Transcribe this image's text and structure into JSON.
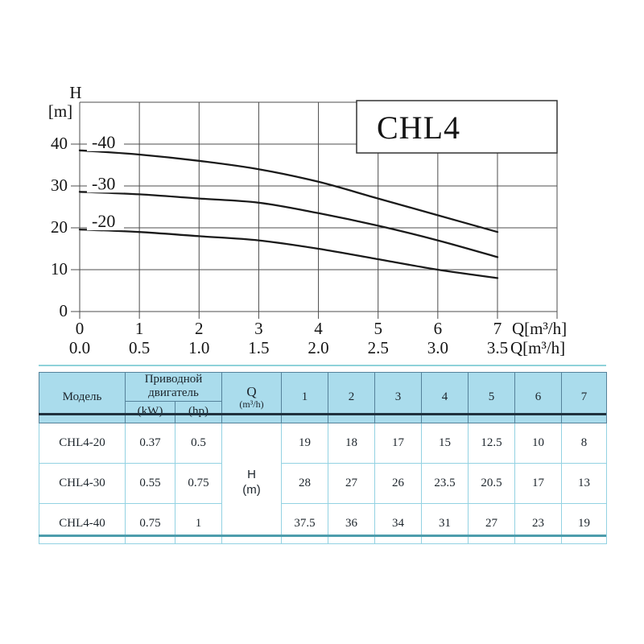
{
  "chart_data": {
    "type": "line",
    "title": "CHL4",
    "ylabel_lines": [
      "H",
      "[m]"
    ],
    "x_unit_primary": "Q[m³/h]",
    "x_unit_secondary": "Q[m³/h]",
    "xlim": [
      0,
      8
    ],
    "ylim": [
      0,
      50
    ],
    "grid": true,
    "x_ticks": [
      "0",
      "1",
      "2",
      "3",
      "4",
      "5",
      "6",
      "7"
    ],
    "x_ticks_secondary": [
      "0.0",
      "0.5",
      "1.0",
      "1.5",
      "2.0",
      "2.5",
      "3.0",
      "3.5"
    ],
    "y_ticks": [
      "0",
      "10",
      "20",
      "30",
      "40"
    ],
    "series": [
      {
        "name": "-40",
        "x": [
          0,
          1,
          2,
          3,
          4,
          5,
          6,
          7
        ],
        "values": [
          38.5,
          37.5,
          36,
          34,
          31,
          27,
          23,
          19
        ]
      },
      {
        "name": "-30",
        "x": [
          0,
          1,
          2,
          3,
          4,
          5,
          6,
          7
        ],
        "values": [
          28.6,
          28,
          27,
          26,
          23.5,
          20.5,
          17,
          13
        ]
      },
      {
        "name": "-20",
        "x": [
          0,
          1,
          2,
          3,
          4,
          5,
          6,
          7
        ],
        "values": [
          19.6,
          19,
          18,
          17,
          15,
          12.5,
          10,
          8
        ]
      }
    ]
  },
  "table": {
    "headers": {
      "model": "Модель",
      "motor_group": "Приводной двигатель",
      "motor_kw": "(kW)",
      "motor_hp": "(hp)",
      "q_label": "Q",
      "q_unit": "(m³/h)",
      "flow_columns": [
        "1",
        "2",
        "3",
        "4",
        "5",
        "6",
        "7"
      ]
    },
    "h_cell": {
      "line1": "H",
      "line2": "(m)"
    },
    "rows": [
      {
        "model": "CHL4-20",
        "kw": "0.37",
        "hp": "0.5",
        "values": [
          "19",
          "18",
          "17",
          "15",
          "12.5",
          "10",
          "8"
        ]
      },
      {
        "model": "CHL4-30",
        "kw": "0.55",
        "hp": "0.75",
        "values": [
          "28",
          "27",
          "26",
          "23.5",
          "20.5",
          "17",
          "13"
        ]
      },
      {
        "model": "CHL4-40",
        "kw": "0.75",
        "hp": "1",
        "values": [
          "37.5",
          "36",
          "34",
          "31",
          "27",
          "23",
          "19"
        ]
      }
    ]
  },
  "colors": {
    "header_bg": "#aadcec",
    "header_border": "#55829a",
    "body_border": "#93d2e2",
    "dark_rule": "#20323e",
    "top_rule": "#8fd2da",
    "bottom_rule": "#4d9dac",
    "grid": "#4d4d4d",
    "curve": "#1a1a1a",
    "box_border": "#333333"
  }
}
